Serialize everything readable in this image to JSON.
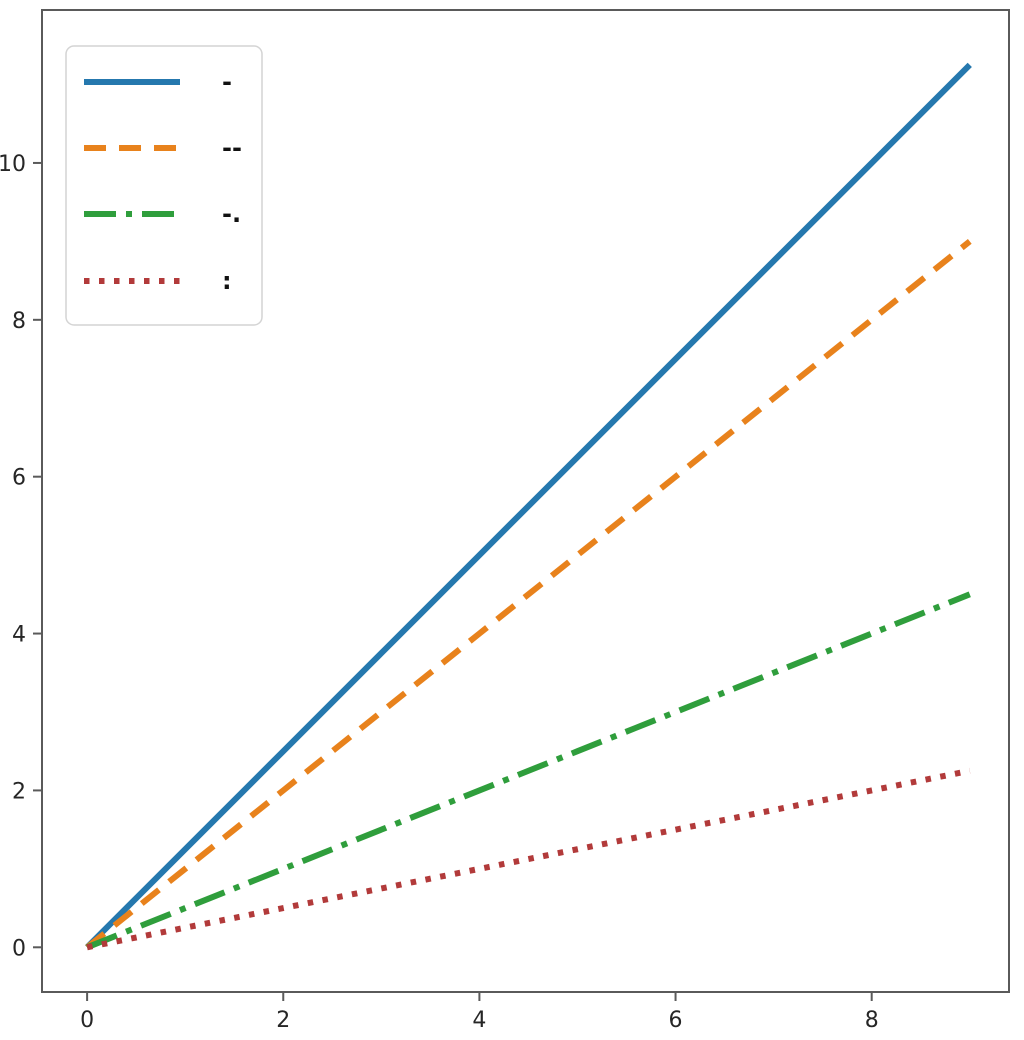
{
  "chart_data": {
    "type": "line",
    "title": "",
    "xlabel": "",
    "ylabel": "",
    "x": [
      0,
      1,
      2,
      3,
      4,
      5,
      6,
      7,
      8,
      9
    ],
    "series": [
      {
        "name": "-",
        "linestyle": "solid",
        "color": "#2578ae",
        "values": [
          0,
          1.25,
          2.5,
          3.75,
          5.0,
          6.25,
          7.5,
          8.75,
          10.0,
          11.25
        ]
      },
      {
        "name": "--",
        "linestyle": "dashed",
        "color": "#e8821c",
        "values": [
          0,
          1.0,
          2.0,
          3.0,
          4.0,
          5.0,
          6.0,
          7.0,
          8.0,
          9.0
        ]
      },
      {
        "name": "-.",
        "linestyle": "dashdot",
        "color": "#2f9e3c",
        "values": [
          0,
          0.5,
          1.0,
          1.5,
          2.0,
          2.5,
          3.0,
          3.5,
          4.0,
          4.5
        ]
      },
      {
        "name": ":",
        "linestyle": "dotted",
        "color": "#b23a3a",
        "values": [
          0,
          0.25,
          0.5,
          0.75,
          1.0,
          1.25,
          1.5,
          1.75,
          2.0,
          2.25
        ]
      }
    ],
    "xlim": [
      -0.46,
      9.4
    ],
    "ylim": [
      -0.57,
      11.95
    ],
    "x_ticks": [
      0,
      2,
      4,
      6,
      8
    ],
    "y_ticks": [
      0,
      2,
      4,
      6,
      8,
      10
    ],
    "grid": false,
    "legend_position": "upper left"
  },
  "colors": {
    "background": "#ffffff",
    "spine": "#5a5a5a",
    "tick": "#5a5a5a",
    "tick_label": "#262626",
    "legend_border": "#d4d4d4",
    "legend_bg": "#ffffff"
  }
}
